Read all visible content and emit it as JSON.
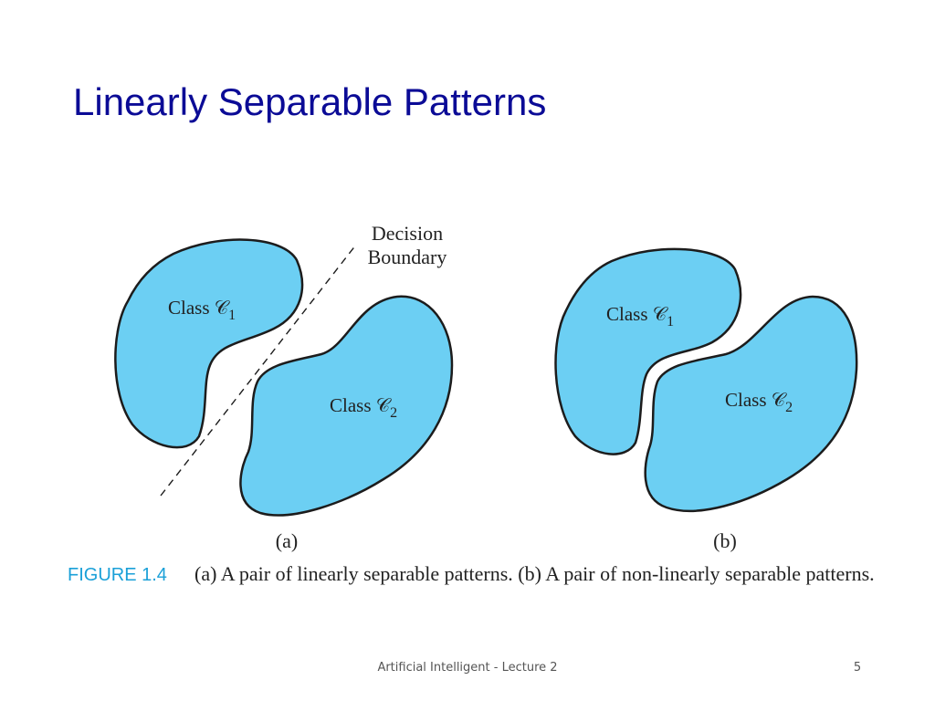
{
  "slide": {
    "title": "Linearly Separable Patterns",
    "footer": "Artificial Intelligent - Lecture 2",
    "page_number": "5"
  },
  "figure": {
    "boundary_label_line1": "Decision",
    "boundary_label_line2": "Boundary",
    "panel_a": {
      "label": "(a)",
      "class1": {
        "text": "Class 𝒞",
        "sub": "1"
      },
      "class2": {
        "text": "Class 𝒞",
        "sub": "2"
      }
    },
    "panel_b": {
      "label": "(b)",
      "class1": {
        "text": "Class 𝒞",
        "sub": "1"
      },
      "class2": {
        "text": "Class 𝒞",
        "sub": "2"
      }
    },
    "caption_tag": "FIGURE 1.4",
    "caption_text": "(a) A pair of linearly separable patterns. (b) A pair of non-linearly separable patterns.",
    "colors": {
      "class_fill": "#6ccff3",
      "title": "#0b0b96",
      "caption_tag": "#1aa0d8"
    }
  }
}
